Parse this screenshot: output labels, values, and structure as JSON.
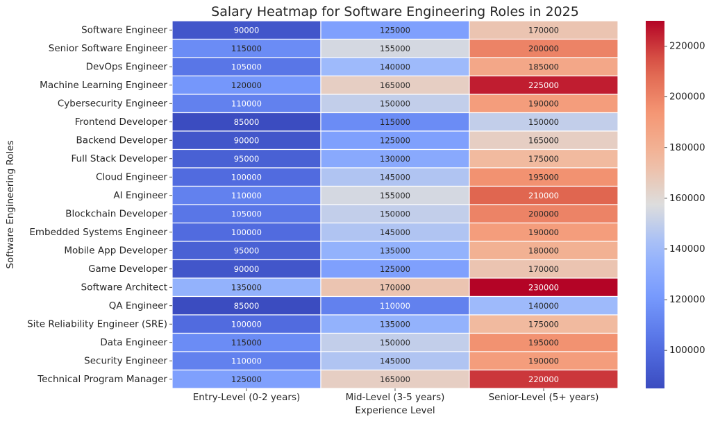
{
  "chart_data": {
    "type": "heatmap",
    "title": "Salary Heatmap for Software Engineering Roles in 2025",
    "xlabel": "Experience Level",
    "ylabel": "Software Engineering Roles",
    "columns": [
      "Entry-Level (0-2 years)",
      "Mid-Level (3-5 years)",
      "Senior-Level (5+ years)"
    ],
    "rows": [
      "Software Engineer",
      "Senior Software Engineer",
      "DevOps Engineer",
      "Machine Learning Engineer",
      "Cybersecurity Engineer",
      "Frontend Developer",
      "Backend Developer",
      "Full Stack Developer",
      "Cloud Engineer",
      "AI Engineer",
      "Blockchain Developer",
      "Embedded Systems Engineer",
      "Mobile App Developer",
      "Game Developer",
      "Software Architect",
      "QA Engineer",
      "Site Reliability Engineer (SRE)",
      "Data Engineer",
      "Security Engineer",
      "Technical Program Manager"
    ],
    "values": [
      [
        90000,
        125000,
        170000
      ],
      [
        115000,
        155000,
        200000
      ],
      [
        105000,
        140000,
        185000
      ],
      [
        120000,
        165000,
        225000
      ],
      [
        110000,
        150000,
        190000
      ],
      [
        85000,
        115000,
        150000
      ],
      [
        90000,
        125000,
        165000
      ],
      [
        95000,
        130000,
        175000
      ],
      [
        100000,
        145000,
        195000
      ],
      [
        110000,
        155000,
        210000
      ],
      [
        105000,
        150000,
        200000
      ],
      [
        100000,
        145000,
        190000
      ],
      [
        95000,
        135000,
        180000
      ],
      [
        90000,
        125000,
        170000
      ],
      [
        135000,
        170000,
        230000
      ],
      [
        85000,
        110000,
        140000
      ],
      [
        100000,
        135000,
        175000
      ],
      [
        115000,
        150000,
        195000
      ],
      [
        110000,
        145000,
        190000
      ],
      [
        125000,
        165000,
        220000
      ]
    ],
    "colormap": "coolwarm",
    "vmin": 85000,
    "vmax": 230000,
    "colorbar_ticks": [
      100000,
      120000,
      140000,
      160000,
      180000,
      200000,
      220000
    ],
    "cell_separator_color": "#ffffff"
  }
}
